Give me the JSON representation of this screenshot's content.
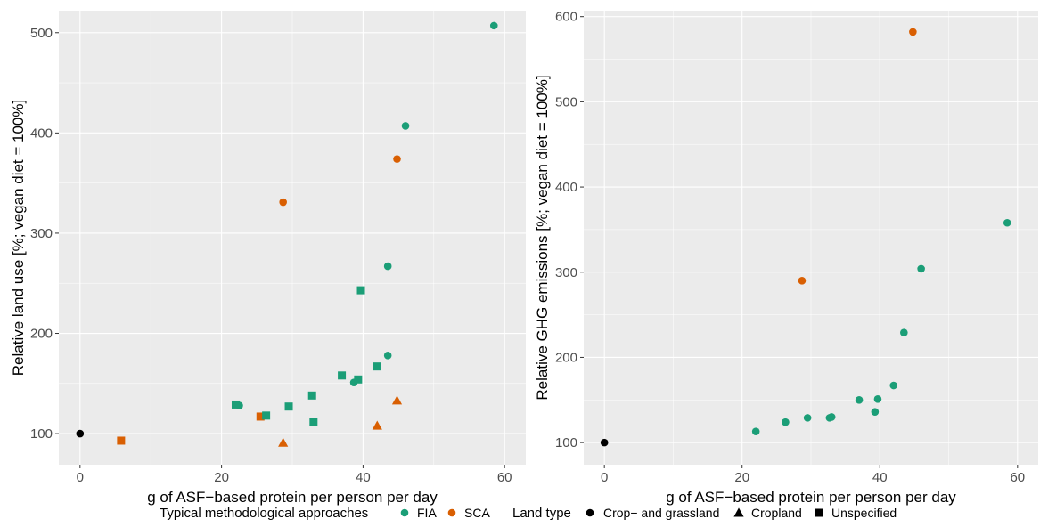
{
  "chart_data": [
    {
      "type": "scatter",
      "xlabel": "g of ASF−based protein per person per day",
      "ylabel": "Relative land use [%; vegan diet = 100%]",
      "xlim": [
        -3,
        63
      ],
      "ylim": [
        69,
        522
      ],
      "x_ticks": [
        0,
        20,
        40,
        60
      ],
      "y_ticks": [
        100,
        200,
        300,
        400,
        500
      ],
      "grid": true,
      "points": [
        {
          "x": 0,
          "y": 100,
          "approach": "none",
          "land": "crop-grass"
        },
        {
          "x": 58.5,
          "y": 507,
          "approach": "FIA",
          "land": "crop-grass"
        },
        {
          "x": 46,
          "y": 407,
          "approach": "FIA",
          "land": "crop-grass"
        },
        {
          "x": 43.5,
          "y": 267,
          "approach": "FIA",
          "land": "crop-grass"
        },
        {
          "x": 43.5,
          "y": 178,
          "approach": "FIA",
          "land": "crop-grass"
        },
        {
          "x": 38.7,
          "y": 151,
          "approach": "FIA",
          "land": "crop-grass"
        },
        {
          "x": 22.5,
          "y": 128,
          "approach": "FIA",
          "land": "crop-grass"
        },
        {
          "x": 28.7,
          "y": 331,
          "approach": "SCA",
          "land": "crop-grass"
        },
        {
          "x": 44.8,
          "y": 374,
          "approach": "SCA",
          "land": "crop-grass"
        },
        {
          "x": 28.7,
          "y": 91,
          "approach": "SCA",
          "land": "cropland"
        },
        {
          "x": 42,
          "y": 108,
          "approach": "SCA",
          "land": "cropland"
        },
        {
          "x": 44.8,
          "y": 133,
          "approach": "SCA",
          "land": "cropland"
        },
        {
          "x": 5.8,
          "y": 93,
          "approach": "SCA",
          "land": "unspecified"
        },
        {
          "x": 25.5,
          "y": 117,
          "approach": "SCA",
          "land": "unspecified"
        },
        {
          "x": 22,
          "y": 129,
          "approach": "FIA",
          "land": "unspecified"
        },
        {
          "x": 26.3,
          "y": 118,
          "approach": "FIA",
          "land": "unspecified"
        },
        {
          "x": 29.5,
          "y": 127,
          "approach": "FIA",
          "land": "unspecified"
        },
        {
          "x": 33,
          "y": 112,
          "approach": "FIA",
          "land": "unspecified"
        },
        {
          "x": 32.8,
          "y": 138,
          "approach": "FIA",
          "land": "unspecified"
        },
        {
          "x": 37,
          "y": 158,
          "approach": "FIA",
          "land": "unspecified"
        },
        {
          "x": 39.3,
          "y": 154,
          "approach": "FIA",
          "land": "unspecified"
        },
        {
          "x": 42,
          "y": 167,
          "approach": "FIA",
          "land": "unspecified"
        },
        {
          "x": 39.7,
          "y": 243,
          "approach": "FIA",
          "land": "unspecified"
        }
      ]
    },
    {
      "type": "scatter",
      "xlabel": "g of ASF−based protein per person per day",
      "ylabel": "Relative GHG emissions [%; vegan diet = 100%]",
      "xlim": [
        -3,
        63
      ],
      "ylim": [
        74,
        607
      ],
      "x_ticks": [
        0,
        20,
        40,
        60
      ],
      "y_ticks": [
        100,
        200,
        300,
        400,
        500,
        600
      ],
      "grid": true,
      "points": [
        {
          "x": 0,
          "y": 100,
          "approach": "none",
          "land": "crop-grass"
        },
        {
          "x": 22,
          "y": 113,
          "approach": "FIA",
          "land": "crop-grass"
        },
        {
          "x": 26.3,
          "y": 124,
          "approach": "FIA",
          "land": "crop-grass"
        },
        {
          "x": 29.5,
          "y": 129,
          "approach": "FIA",
          "land": "crop-grass"
        },
        {
          "x": 32.7,
          "y": 129,
          "approach": "FIA",
          "land": "crop-grass"
        },
        {
          "x": 33,
          "y": 130,
          "approach": "FIA",
          "land": "crop-grass"
        },
        {
          "x": 37,
          "y": 150,
          "approach": "FIA",
          "land": "crop-grass"
        },
        {
          "x": 39.3,
          "y": 136,
          "approach": "FIA",
          "land": "crop-grass"
        },
        {
          "x": 39.7,
          "y": 151,
          "approach": "FIA",
          "land": "crop-grass"
        },
        {
          "x": 42,
          "y": 167,
          "approach": "FIA",
          "land": "crop-grass"
        },
        {
          "x": 43.5,
          "y": 229,
          "approach": "FIA",
          "land": "crop-grass"
        },
        {
          "x": 46,
          "y": 304,
          "approach": "FIA",
          "land": "crop-grass"
        },
        {
          "x": 58.5,
          "y": 358,
          "approach": "FIA",
          "land": "crop-grass"
        },
        {
          "x": 28.7,
          "y": 290,
          "approach": "SCA",
          "land": "crop-grass"
        },
        {
          "x": 44.8,
          "y": 582,
          "approach": "SCA",
          "land": "crop-grass"
        }
      ]
    }
  ],
  "legend": {
    "approach_title": "Typical methodological approaches",
    "approaches": [
      {
        "key": "FIA",
        "label": "FIA"
      },
      {
        "key": "SCA",
        "label": "SCA"
      }
    ],
    "land_title": "Land type",
    "lands": [
      {
        "key": "crop-grass",
        "label": "Crop− and grassland",
        "shape": "circle"
      },
      {
        "key": "cropland",
        "label": "Cropland",
        "shape": "triangle"
      },
      {
        "key": "unspecified",
        "label": "Unspecified",
        "shape": "square"
      }
    ]
  },
  "colors": {
    "FIA": "#1b9e77",
    "SCA": "#d95f02",
    "none": "#000000",
    "panel": "#ebebeb",
    "grid": "#ffffff"
  }
}
